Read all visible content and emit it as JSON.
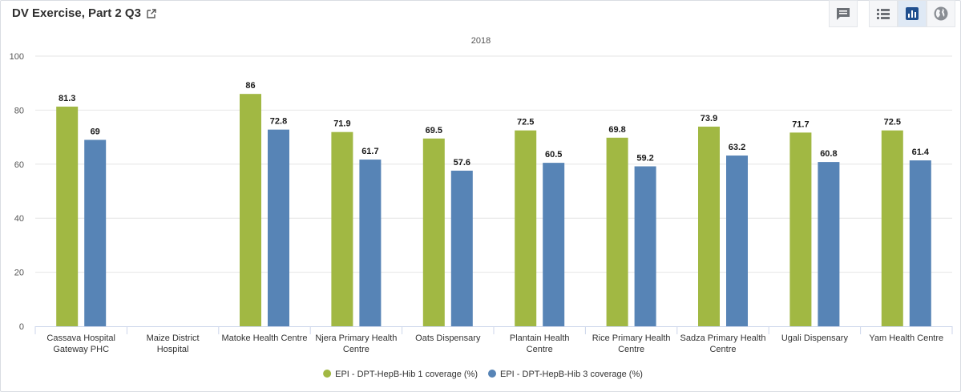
{
  "header": {
    "title": "DV Exercise, Part 2 Q3",
    "external_link_icon": "external-link-icon"
  },
  "toolbar": {
    "buttons": [
      {
        "name": "interpretations-button",
        "icon": "comment-icon"
      },
      {
        "name": "table-view-button",
        "icon": "table-icon"
      },
      {
        "name": "chart-view-button",
        "icon": "bar-chart-icon",
        "active": true
      },
      {
        "name": "map-view-button",
        "icon": "globe-icon"
      }
    ]
  },
  "colors": {
    "series1": "#a1b843",
    "series2": "#5784b6",
    "active_button": "#1f4f8f",
    "grid": "#e6e6e6"
  },
  "chart_data": {
    "type": "bar",
    "subtitle": "2018",
    "ylim": [
      0,
      100
    ],
    "yticks": [
      0,
      20,
      40,
      60,
      80,
      100
    ],
    "grid": true,
    "legend_position": "bottom-center",
    "categories": [
      [
        "Cassava Hospital",
        "Gateway PHC"
      ],
      [
        "Maize District",
        "Hospital"
      ],
      [
        "Matoke Health Centre"
      ],
      [
        "Njera Primary Health",
        "Centre"
      ],
      [
        "Oats Dispensary"
      ],
      [
        "Plantain Health",
        "Centre"
      ],
      [
        "Rice Primary Health",
        "Centre"
      ],
      [
        "Sadza Primary Health",
        "Centre"
      ],
      [
        "Ugali Dispensary"
      ],
      [
        "Yam Health Centre"
      ]
    ],
    "series": [
      {
        "name": "EPI - DPT-HepB-Hib 1 coverage (%)",
        "values": [
          81.3,
          null,
          86,
          71.9,
          69.5,
          72.5,
          69.8,
          73.9,
          71.7,
          72.5
        ]
      },
      {
        "name": "EPI - DPT-HepB-Hib 3 coverage (%)",
        "values": [
          69,
          null,
          72.8,
          61.7,
          57.6,
          60.5,
          59.2,
          63.2,
          60.8,
          61.4
        ]
      }
    ]
  }
}
